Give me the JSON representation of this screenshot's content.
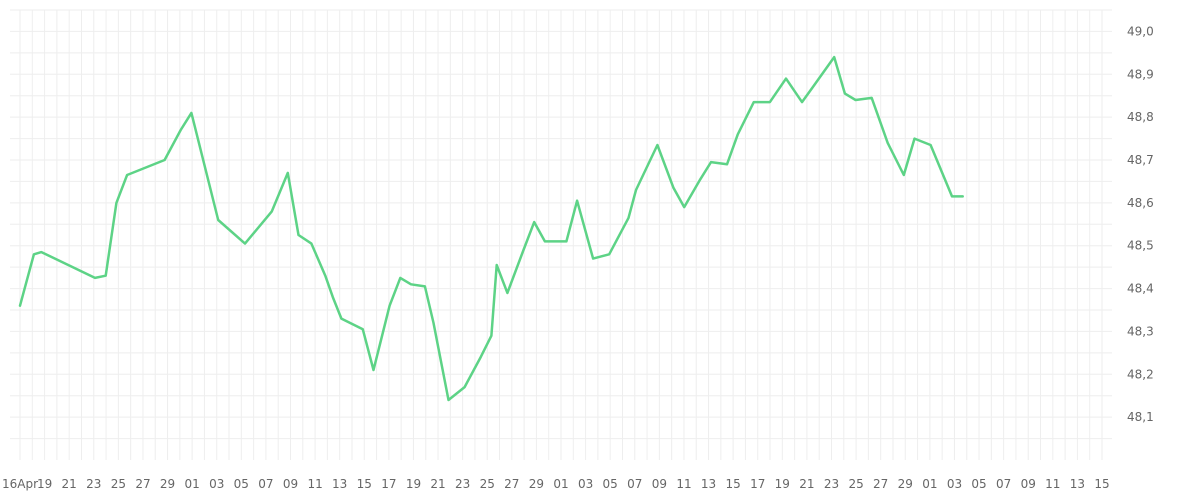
{
  "chart_data": {
    "type": "line",
    "title": "",
    "xlabel": "",
    "ylabel": "",
    "grid": true,
    "x_tick_labels": [
      "16Apr",
      "19",
      "21",
      "23",
      "25",
      "27",
      "29",
      "01",
      "03",
      "05",
      "07",
      "09",
      "11",
      "13",
      "15",
      "17",
      "19",
      "21",
      "23",
      "25",
      "27",
      "29",
      "01",
      "03",
      "05",
      "07",
      "09",
      "11",
      "13",
      "15",
      "17",
      "19",
      "21",
      "23",
      "25",
      "27",
      "29",
      "01",
      "03",
      "05",
      "07",
      "09",
      "11",
      "13",
      "15"
    ],
    "y_axis": {
      "position": "right",
      "ylim": [
        48.0,
        49.05
      ],
      "ticks": [
        "48,1",
        "48,2",
        "48,3",
        "48,4",
        "48,5",
        "48,6",
        "48,7",
        "48,8",
        "48,9",
        "49,0"
      ],
      "tick_values": [
        48.1,
        48.2,
        48.3,
        48.4,
        48.5,
        48.6,
        48.7,
        48.8,
        48.9,
        49.0
      ]
    },
    "colors": {
      "line": "#5dd386",
      "grid": "#eeeeee",
      "tick_text": "#666666"
    },
    "series": [
      {
        "x": [
          0,
          1.3,
          2.0,
          7.0,
          8.0,
          9.0,
          10.0,
          13.5,
          15.0,
          16.0,
          18.5,
          21.0,
          23.5,
          25.0,
          26.0,
          27.2,
          28.5,
          29.2,
          30.0,
          32.0,
          33.0,
          34.5,
          35.5,
          36.5,
          37.8,
          38.6,
          40.0,
          41.5,
          43.0,
          44.0,
          44.5,
          45.5,
          47.0,
          48.0,
          49.0,
          51.0,
          52.0,
          53.5,
          55.0,
          56.8,
          57.5,
          59.5,
          61.0,
          62.0,
          63.5,
          64.5,
          66.0,
          67.0,
          68.5,
          70.0,
          71.5,
          73.0,
          74.0,
          75.0,
          76.0,
          77.0,
          78.0,
          79.5,
          81.0,
          82.5,
          83.5,
          85.0,
          87.0,
          88.0,
          90.0,
          91.5,
          92.0,
          93.0,
          94.5,
          95.5,
          97.5,
          99.0,
          99.5
        ],
        "y": [
          48.36,
          48.48,
          48.485,
          48.425,
          48.43,
          48.6,
          48.665,
          48.7,
          48.77,
          48.81,
          48.56,
          48.505,
          48.58,
          48.67,
          48.525,
          48.505,
          48.43,
          48.38,
          48.33,
          48.305,
          48.21,
          48.36,
          48.425,
          48.41,
          48.405,
          48.32,
          48.14,
          48.17,
          48.24,
          48.29,
          48.455,
          48.39,
          48.49,
          48.555,
          48.51,
          48.51,
          48.605,
          48.47,
          48.48,
          48.565,
          48.63,
          48.735,
          48.635,
          48.59,
          48.655,
          48.695,
          48.69,
          48.76,
          48.835,
          48.835,
          48.89,
          48.835,
          48.87,
          48.905,
          48.94,
          48.855,
          48.84,
          48.845,
          48.74,
          48.665,
          48.75,
          48.735,
          48.615,
          48.615,
          48.615,
          48.615,
          48.615,
          48.615,
          48.615,
          48.615,
          48.615,
          48.615,
          48.615
        ]
      }
    ]
  }
}
